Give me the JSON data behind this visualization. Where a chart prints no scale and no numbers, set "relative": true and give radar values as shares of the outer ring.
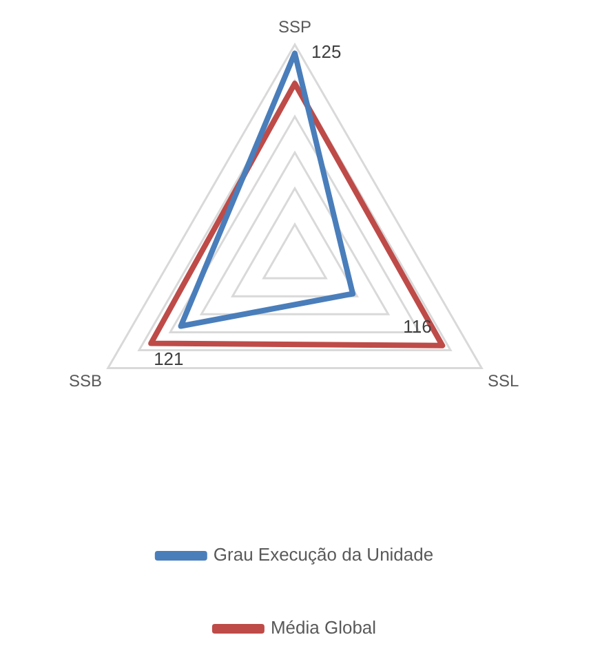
{
  "chart_data": {
    "type": "radar",
    "relative": true,
    "categories": [
      "SSP",
      "SSL",
      "SSB"
    ],
    "series": [
      {
        "name": "Grau Execução da Unidade",
        "color": "#4a7ebb",
        "values": [
          0.96,
          0.31,
          0.61
        ]
      },
      {
        "name": "Média Global",
        "color": "#be4b48",
        "values": [
          0.82,
          0.79,
          0.77
        ]
      }
    ],
    "annotations": [
      "125",
      "116",
      "121"
    ],
    "legend": "bottom",
    "marker": "none",
    "grid": true
  }
}
